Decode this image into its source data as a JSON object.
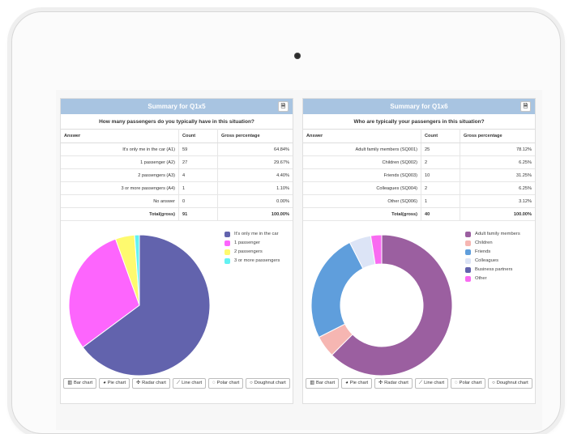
{
  "panels": [
    {
      "title": "Summary for Q1x5",
      "question": "How many passengers do you typically have in this situation?",
      "headers": [
        "Answer",
        "Count",
        "Gross percentage"
      ],
      "rows": [
        {
          "answer": "It's only me in the car (A1)",
          "count": "59",
          "percent": "64.84%"
        },
        {
          "answer": "1 passenger (A2)",
          "count": "27",
          "percent": "29.67%"
        },
        {
          "answer": "2 passengers (A3)",
          "count": "4",
          "percent": "4.40%"
        },
        {
          "answer": "3 or more passengers (A4)",
          "count": "1",
          "percent": "1.10%"
        },
        {
          "answer": "No answer",
          "count": "0",
          "percent": "0.00%"
        }
      ],
      "total": {
        "label": "Total(gross)",
        "count": "91",
        "percent": "100.00%"
      },
      "legend": [
        {
          "label": "It's only me in the car",
          "color": "#6263ad"
        },
        {
          "label": "1 passenger",
          "color": "#fd65fd"
        },
        {
          "label": "2 passengers",
          "color": "#fefa6e"
        },
        {
          "label": "3 or more passengers",
          "color": "#63f2f2"
        }
      ],
      "buttons": [
        "Bar chart",
        "Pie chart",
        "Radar chart",
        "Line chart",
        "Polar chart",
        "Doughnut chart"
      ]
    },
    {
      "title": "Summary for Q1x6",
      "question": "Who are typically your passengers in this situation?",
      "headers": [
        "Answer",
        "Count",
        "Gross percentage"
      ],
      "rows": [
        {
          "answer": "Adult family members (SQ001)",
          "count": "25",
          "percent": "78.12%"
        },
        {
          "answer": "Children (SQ002)",
          "count": "2",
          "percent": "6.25%"
        },
        {
          "answer": "Friends (SQ003)",
          "count": "10",
          "percent": "31.25%"
        },
        {
          "answer": "Colleagues (SQ004)",
          "count": "2",
          "percent": "6.25%"
        },
        {
          "answer": "Other (SQ006)",
          "count": "1",
          "percent": "3.12%"
        }
      ],
      "total": {
        "label": "Total(gross)",
        "count": "40",
        "percent": "100.00%"
      },
      "legend": [
        {
          "label": "Adult family members",
          "color": "#9b5fa0"
        },
        {
          "label": "Children",
          "color": "#f6b6b2"
        },
        {
          "label": "Friends",
          "color": "#5f9edc"
        },
        {
          "label": "Colleagues",
          "color": "#dce4f6"
        },
        {
          "label": "Business partners",
          "color": "#6263ad"
        },
        {
          "label": "Other",
          "color": "#f96bf1"
        }
      ],
      "buttons": [
        "Bar chart",
        "Pie chart",
        "Radar chart",
        "Line chart",
        "Polar chart",
        "Doughnut chart"
      ]
    }
  ],
  "chart_data": [
    {
      "type": "pie",
      "title": "Summary for Q1x5",
      "categories": [
        "It's only me in the car",
        "1 passenger",
        "2 passengers",
        "3 or more passengers"
      ],
      "values": [
        59,
        27,
        4,
        1
      ],
      "colors": [
        "#6263ad",
        "#fd65fd",
        "#fefa6e",
        "#63f2f2"
      ]
    },
    {
      "type": "pie",
      "title": "Summary for Q1x6",
      "categories": [
        "Adult family members",
        "Children",
        "Friends",
        "Colleagues",
        "Business partners",
        "Other"
      ],
      "values": [
        25,
        2,
        10,
        2,
        0,
        1
      ],
      "colors": [
        "#9b5fa0",
        "#f6b6b2",
        "#5f9edc",
        "#dce4f6",
        "#6263ad",
        "#f96bf1"
      ]
    }
  ]
}
